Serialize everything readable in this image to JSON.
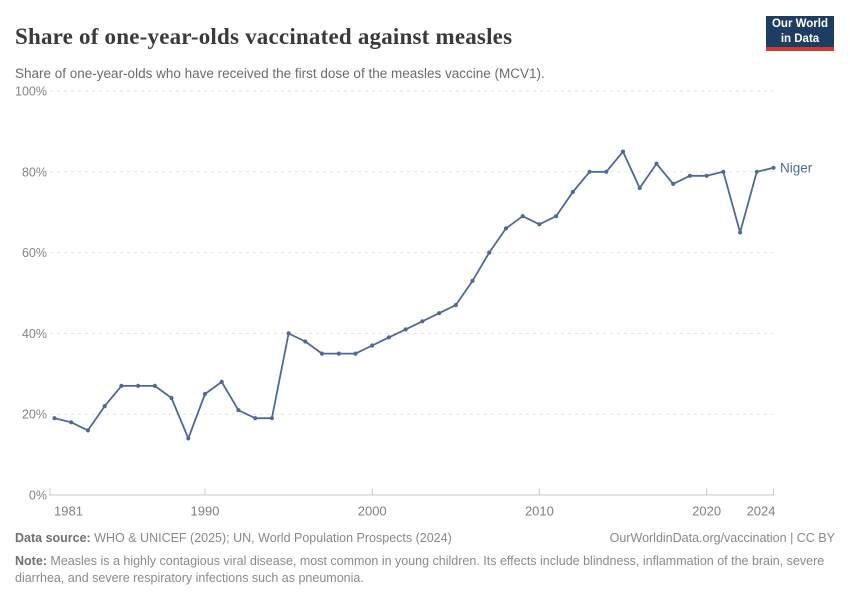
{
  "header": {
    "title": "Share of one-year-olds vaccinated against measles",
    "subtitle": "Share of one-year-olds who have received the first dose of the measles vaccine (MCV1).",
    "logo_line1": "Our World",
    "logo_line2": "in Data",
    "logo_bg_color": "#1d3d63",
    "logo_bar_color": "#cc3b31"
  },
  "chart_data": {
    "type": "line",
    "title": "Share of one-year-olds vaccinated against measles",
    "xlabel": "",
    "ylabel": "",
    "xlim": [
      1981,
      2024
    ],
    "ylim": [
      0,
      100
    ],
    "x_ticks": [
      1981,
      1990,
      2000,
      2010,
      2020,
      2024
    ],
    "y_ticks": [
      0,
      20,
      40,
      60,
      80,
      100
    ],
    "y_tick_suffix": "%",
    "grid": "horizontal-dashed",
    "legend": "end-of-line-label",
    "x": [
      1981,
      1982,
      1983,
      1984,
      1985,
      1986,
      1987,
      1988,
      1989,
      1990,
      1991,
      1992,
      1993,
      1994,
      1995,
      1996,
      1997,
      1998,
      1999,
      2000,
      2001,
      2002,
      2003,
      2004,
      2005,
      2006,
      2007,
      2008,
      2009,
      2010,
      2011,
      2012,
      2013,
      2014,
      2015,
      2016,
      2017,
      2018,
      2019,
      2020,
      2021,
      2022,
      2023,
      2024
    ],
    "series": [
      {
        "name": "Niger",
        "color": "#4c6a9c",
        "values": [
          19,
          18,
          16,
          22,
          27,
          27,
          27,
          24,
          14,
          25,
          28,
          21,
          19,
          19,
          40,
          38,
          35,
          35,
          35,
          37,
          39,
          41,
          43,
          45,
          47,
          53,
          60,
          66,
          69,
          67,
          69,
          75,
          80,
          80,
          85,
          76,
          82,
          77,
          79,
          79,
          80,
          65,
          80,
          81
        ]
      }
    ],
    "colors": {
      "gridline": "#e0e0e0",
      "axis": "#c8c8c8",
      "tick_label": "#7f7f7f"
    }
  },
  "footer": {
    "datasource_label": "Data source:",
    "datasource": " WHO & UNICEF (2025); UN, World Population Prospects (2024)",
    "rights": "OurWorldinData.org/vaccination | CC BY",
    "note_label": "Note:",
    "note": " Measles is a highly contagious viral disease, most common in young children. Its effects include blindness, inflammation of the brain, severe diarrhea, and severe respiratory infections such as pneumonia."
  }
}
